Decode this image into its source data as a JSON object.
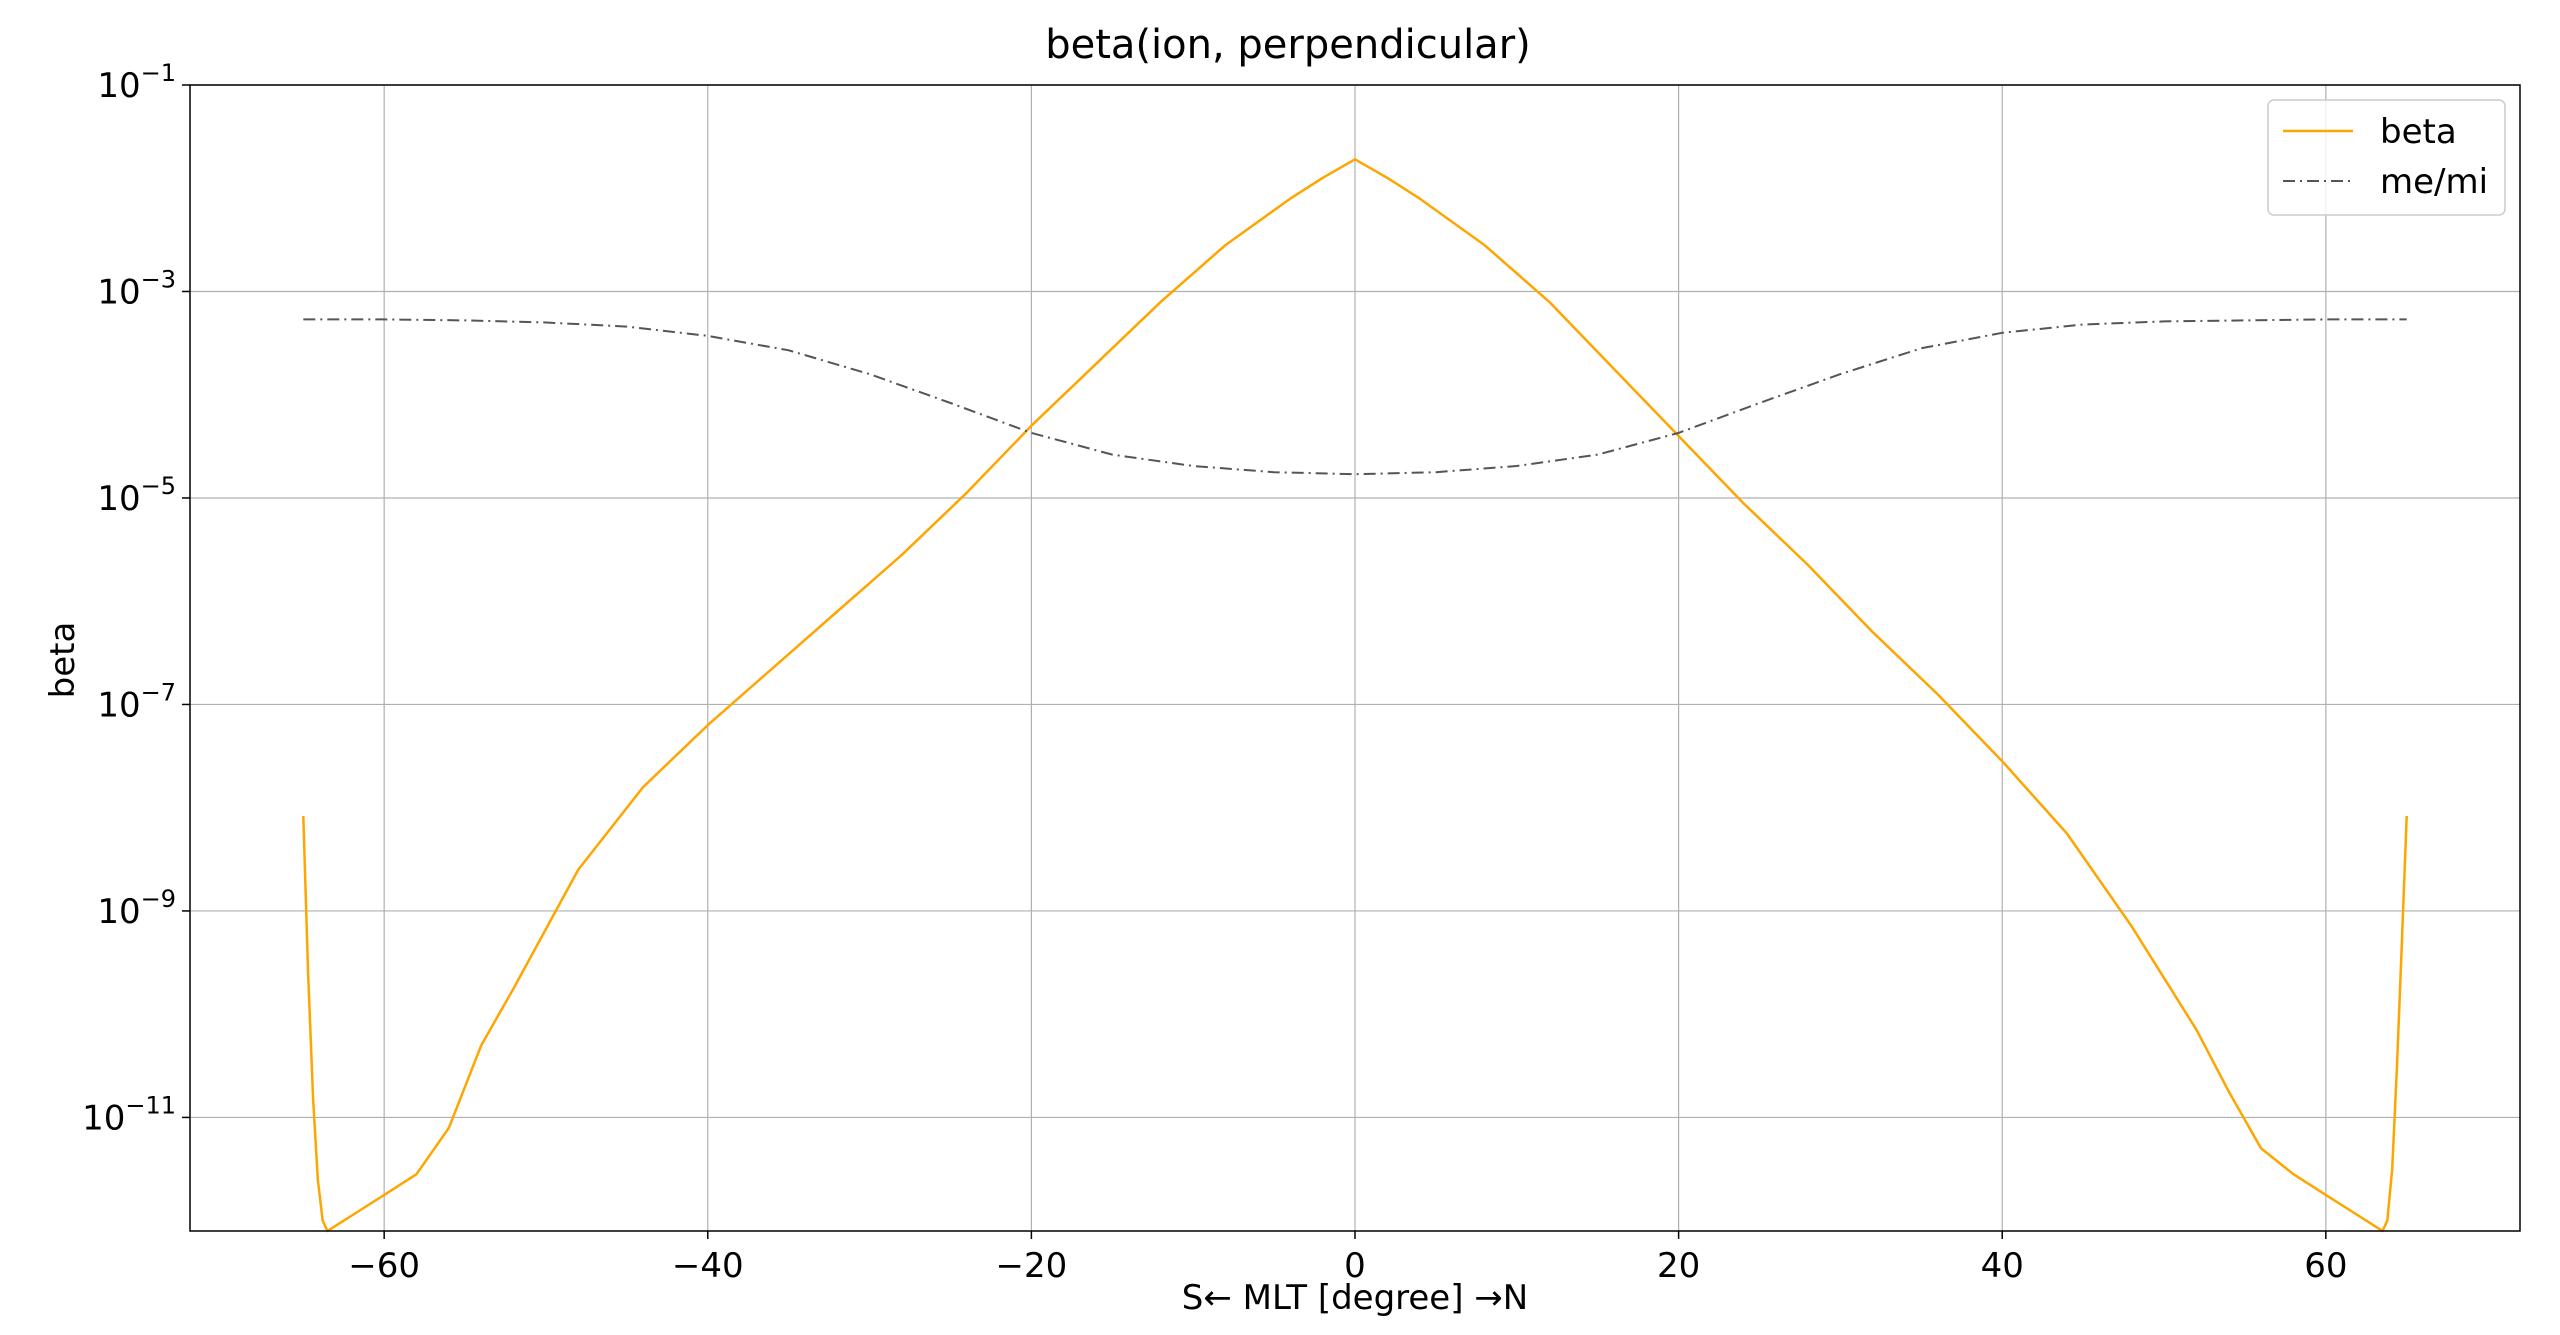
{
  "chart_data": {
    "type": "line",
    "title": "beta(ion, perpendicular)",
    "xlabel": "S← MLT [degree] →N",
    "ylabel": "beta",
    "xlim": [
      -72,
      72
    ],
    "ylim_log10": [
      -12.1,
      -1
    ],
    "yscale": "log",
    "grid": true,
    "legend_position": "top-right",
    "x_ticks": [
      {
        "value": -60,
        "label": "−60"
      },
      {
        "value": -40,
        "label": "−40"
      },
      {
        "value": -20,
        "label": "−20"
      },
      {
        "value": 0,
        "label": "0"
      },
      {
        "value": 20,
        "label": "20"
      },
      {
        "value": 40,
        "label": "40"
      },
      {
        "value": 60,
        "label": "60"
      }
    ],
    "y_ticks": [
      {
        "exp": -1,
        "base": "10",
        "sup": "−1"
      },
      {
        "exp": -3,
        "base": "10",
        "sup": "−3"
      },
      {
        "exp": -5,
        "base": "10",
        "sup": "−5"
      },
      {
        "exp": -7,
        "base": "10",
        "sup": "−7"
      },
      {
        "exp": -9,
        "base": "10",
        "sup": "−9"
      },
      {
        "exp": -11,
        "base": "10",
        "sup": "−11"
      }
    ],
    "series": [
      {
        "name": "beta",
        "color": "#FFA500",
        "style": "solid",
        "x": [
          -65,
          -64.7,
          -64.4,
          -64.1,
          -63.8,
          -63.5,
          -63,
          -62,
          -60,
          -58,
          -56,
          -54,
          -52,
          -48,
          -44,
          -40,
          -36,
          -32,
          -28,
          -24,
          -20,
          -16,
          -12,
          -8,
          -4,
          -2,
          0,
          2,
          4,
          8,
          12,
          16,
          20,
          24,
          28,
          32,
          36,
          40,
          44,
          48,
          52,
          54,
          56,
          58,
          60,
          62,
          63,
          63.5,
          63.8,
          64.1,
          64.4,
          64.7,
          65
        ],
        "log10_y": [
          -8.08,
          -9.6,
          -10.8,
          -11.6,
          -12.0,
          -12.1,
          -12.05,
          -11.95,
          -11.75,
          -11.55,
          -11.1,
          -10.3,
          -9.75,
          -8.6,
          -7.8,
          -7.2,
          -6.65,
          -6.1,
          -5.55,
          -4.95,
          -4.3,
          -3.7,
          -3.1,
          -2.55,
          -2.1,
          -1.9,
          -1.72,
          -1.9,
          -2.1,
          -2.55,
          -3.1,
          -3.75,
          -4.4,
          -5.05,
          -5.65,
          -6.3,
          -6.9,
          -7.55,
          -8.25,
          -9.15,
          -10.15,
          -10.75,
          -11.3,
          -11.55,
          -11.75,
          -11.95,
          -12.05,
          -12.1,
          -12.0,
          -11.5,
          -10.5,
          -9.3,
          -8.08
        ]
      },
      {
        "name": "me/mi",
        "color": "#555555",
        "style": "dashdot",
        "x": [
          -65,
          -60,
          -55,
          -50,
          -45,
          -40,
          -35,
          -30,
          -25,
          -20,
          -15,
          -10,
          -5,
          0,
          5,
          10,
          15,
          20,
          25,
          30,
          35,
          40,
          45,
          50,
          55,
          60,
          65
        ],
        "log10_y": [
          -3.27,
          -3.27,
          -3.28,
          -3.3,
          -3.34,
          -3.43,
          -3.57,
          -3.8,
          -4.08,
          -4.37,
          -4.58,
          -4.69,
          -4.75,
          -4.77,
          -4.75,
          -4.69,
          -4.58,
          -4.37,
          -4.08,
          -3.8,
          -3.55,
          -3.4,
          -3.32,
          -3.29,
          -3.28,
          -3.27,
          -3.27
        ]
      }
    ]
  }
}
